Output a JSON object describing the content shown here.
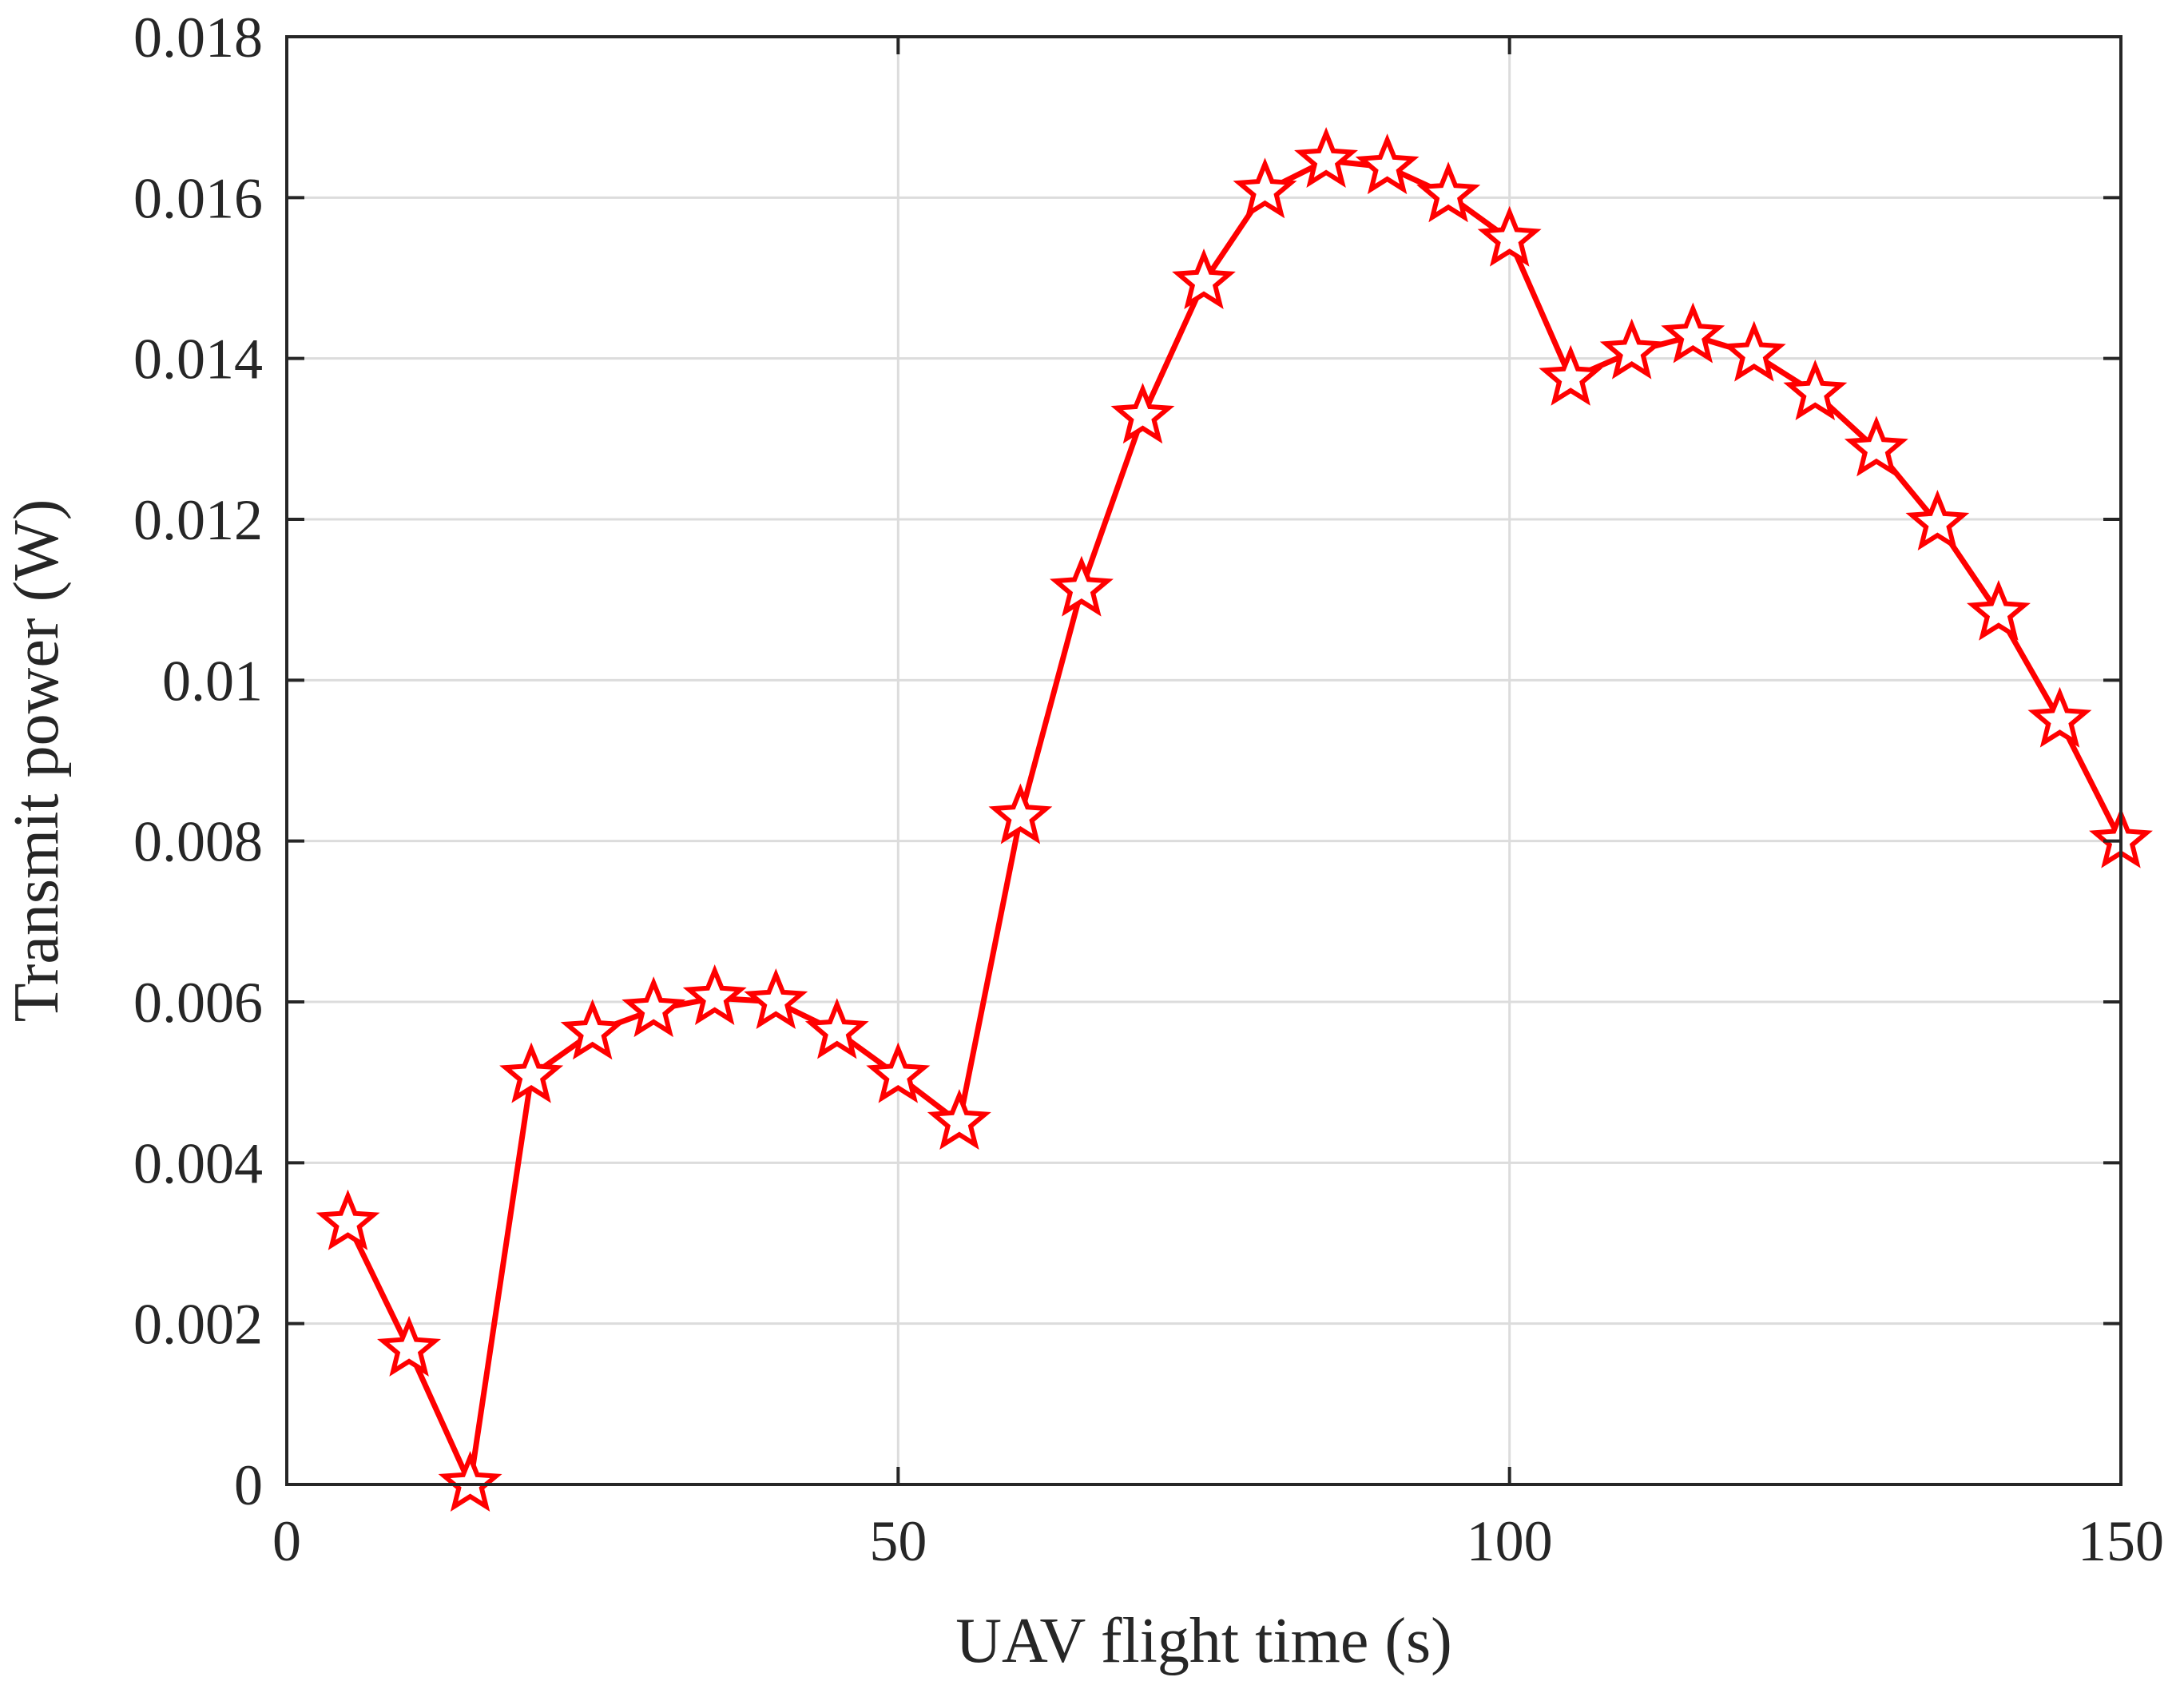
{
  "chart_data": {
    "type": "line",
    "title": "",
    "xlabel": "UAV flight time (s)",
    "ylabel": "Transmit power (W)",
    "xlim": [
      0,
      150
    ],
    "ylim": [
      0,
      0.018
    ],
    "x_ticks": [
      0,
      50,
      100,
      150
    ],
    "x_tick_labels": [
      "0",
      "50",
      "100",
      "150"
    ],
    "y_ticks": [
      0,
      0.002,
      0.004,
      0.006,
      0.008,
      0.01,
      0.012,
      0.014,
      0.016,
      0.018
    ],
    "y_tick_labels": [
      "0",
      "0.002",
      "0.004",
      "0.006",
      "0.008",
      "0.01",
      "0.012",
      "0.014",
      "0.016",
      "0.018"
    ],
    "grid": true,
    "series": [
      {
        "color": "#ff0000",
        "marker": "star",
        "x": [
          5,
          10,
          15,
          20,
          25,
          30,
          35,
          40,
          45,
          50,
          55,
          60,
          65,
          70,
          75,
          80,
          85,
          90,
          95,
          100,
          105,
          110,
          115,
          120,
          125,
          130,
          135,
          140,
          145,
          150
        ],
        "y": [
          0.00325,
          0.00168,
          0.0,
          0.00508,
          0.00562,
          0.0059,
          0.00605,
          0.006,
          0.00563,
          0.00508,
          0.0045,
          0.0083,
          0.01113,
          0.01328,
          0.01495,
          0.01608,
          0.01646,
          0.01638,
          0.01603,
          0.01548,
          0.01375,
          0.01408,
          0.01428,
          0.01405,
          0.01357,
          0.01287,
          0.01195,
          0.01083,
          0.0095,
          0.008
        ]
      }
    ]
  }
}
